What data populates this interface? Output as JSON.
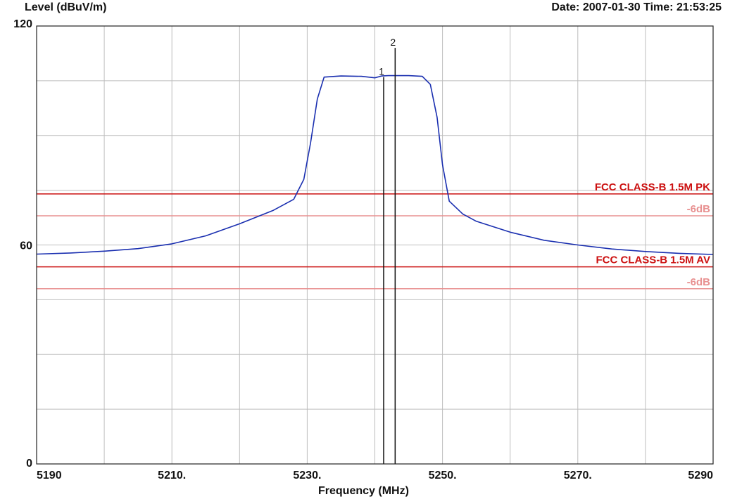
{
  "header": {
    "ylabel": "Level (dBuV/m)",
    "datetime": "Date: 2007-01-30  Time: 21:53:25"
  },
  "chart_data": {
    "type": "line",
    "xlabel": "Frequency (MHz)",
    "ylabel": "Level (dBuV/m)",
    "xlim": [
      5190,
      5290
    ],
    "ylim": [
      0,
      120
    ],
    "grid": true,
    "x_ticks": [
      {
        "value": 5190,
        "label": "5190"
      },
      {
        "value": 5210,
        "label": "5210."
      },
      {
        "value": 5230,
        "label": "5230."
      },
      {
        "value": 5250,
        "label": "5250."
      },
      {
        "value": 5270,
        "label": "5270."
      },
      {
        "value": 5290,
        "label": "5290"
      }
    ],
    "y_ticks": [
      {
        "value": 0,
        "label": "0"
      },
      {
        "value": 60,
        "label": "60"
      },
      {
        "value": 120,
        "label": "120"
      }
    ],
    "series": [
      {
        "color": "#1a2fb0",
        "x": [
          5190,
          5195,
          5200,
          5205,
          5210,
          5215,
          5220,
          5225,
          5228,
          5229.5,
          5230.5,
          5231.5,
          5232.5,
          5235,
          5238,
          5240,
          5241,
          5242,
          5245,
          5247,
          5248.2,
          5249.2,
          5250,
          5251,
          5253,
          5255,
          5260,
          5265,
          5270,
          5275,
          5280,
          5285,
          5290
        ],
        "y": [
          57.5,
          57.8,
          58.3,
          59,
          60.3,
          62.5,
          65.8,
          69.5,
          72.5,
          78,
          88,
          100,
          106,
          106.3,
          106.2,
          105.8,
          106.3,
          106.4,
          106.4,
          106.2,
          104,
          95,
          82,
          72,
          68.5,
          66.5,
          63.5,
          61.3,
          60,
          58.9,
          58.2,
          57.7,
          57.4
        ]
      }
    ],
    "limit_lines": [
      {
        "name": "FCC CLASS-B 1.5M PK",
        "value": 74,
        "color": "#cc1111"
      },
      {
        "name": "-6dB",
        "value": 68,
        "color": "#e89090"
      },
      {
        "name": "FCC CLASS-B 1.5M AV",
        "value": 54,
        "color": "#cc1111"
      },
      {
        "name": "-6dB",
        "value": 48,
        "color": "#e89090"
      }
    ],
    "markers": [
      {
        "label": "1",
        "x": 5241.3,
        "y_top": 106
      },
      {
        "label": "2",
        "x": 5243,
        "y_top": 114
      }
    ]
  }
}
